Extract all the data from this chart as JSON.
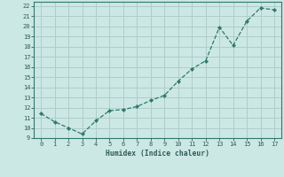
{
  "x": [
    0,
    1,
    2,
    3,
    4,
    5,
    6,
    7,
    8,
    9,
    10,
    11,
    12,
    13,
    14,
    15,
    16,
    17
  ],
  "y": [
    11.4,
    10.6,
    10.0,
    9.4,
    10.7,
    11.7,
    11.8,
    12.1,
    12.7,
    13.2,
    14.6,
    15.8,
    16.6,
    19.9,
    18.1,
    20.5,
    21.8,
    21.6
  ],
  "xlabel": "Humidex (Indice chaleur)",
  "xlim": [
    -0.5,
    17.5
  ],
  "ylim": [
    9,
    22.4
  ],
  "yticks": [
    9,
    10,
    11,
    12,
    13,
    14,
    15,
    16,
    17,
    18,
    19,
    20,
    21,
    22
  ],
  "xticks": [
    0,
    1,
    2,
    3,
    4,
    5,
    6,
    7,
    8,
    9,
    10,
    11,
    12,
    13,
    14,
    15,
    16,
    17
  ],
  "line_color": "#2d7a68",
  "marker_color": "#2d7a68",
  "bg_color": "#cce8e4",
  "grid_color": "#b0cdc9",
  "axis_color": "#2d7a68",
  "tick_color": "#2d5c54",
  "label_color": "#2d5c54"
}
